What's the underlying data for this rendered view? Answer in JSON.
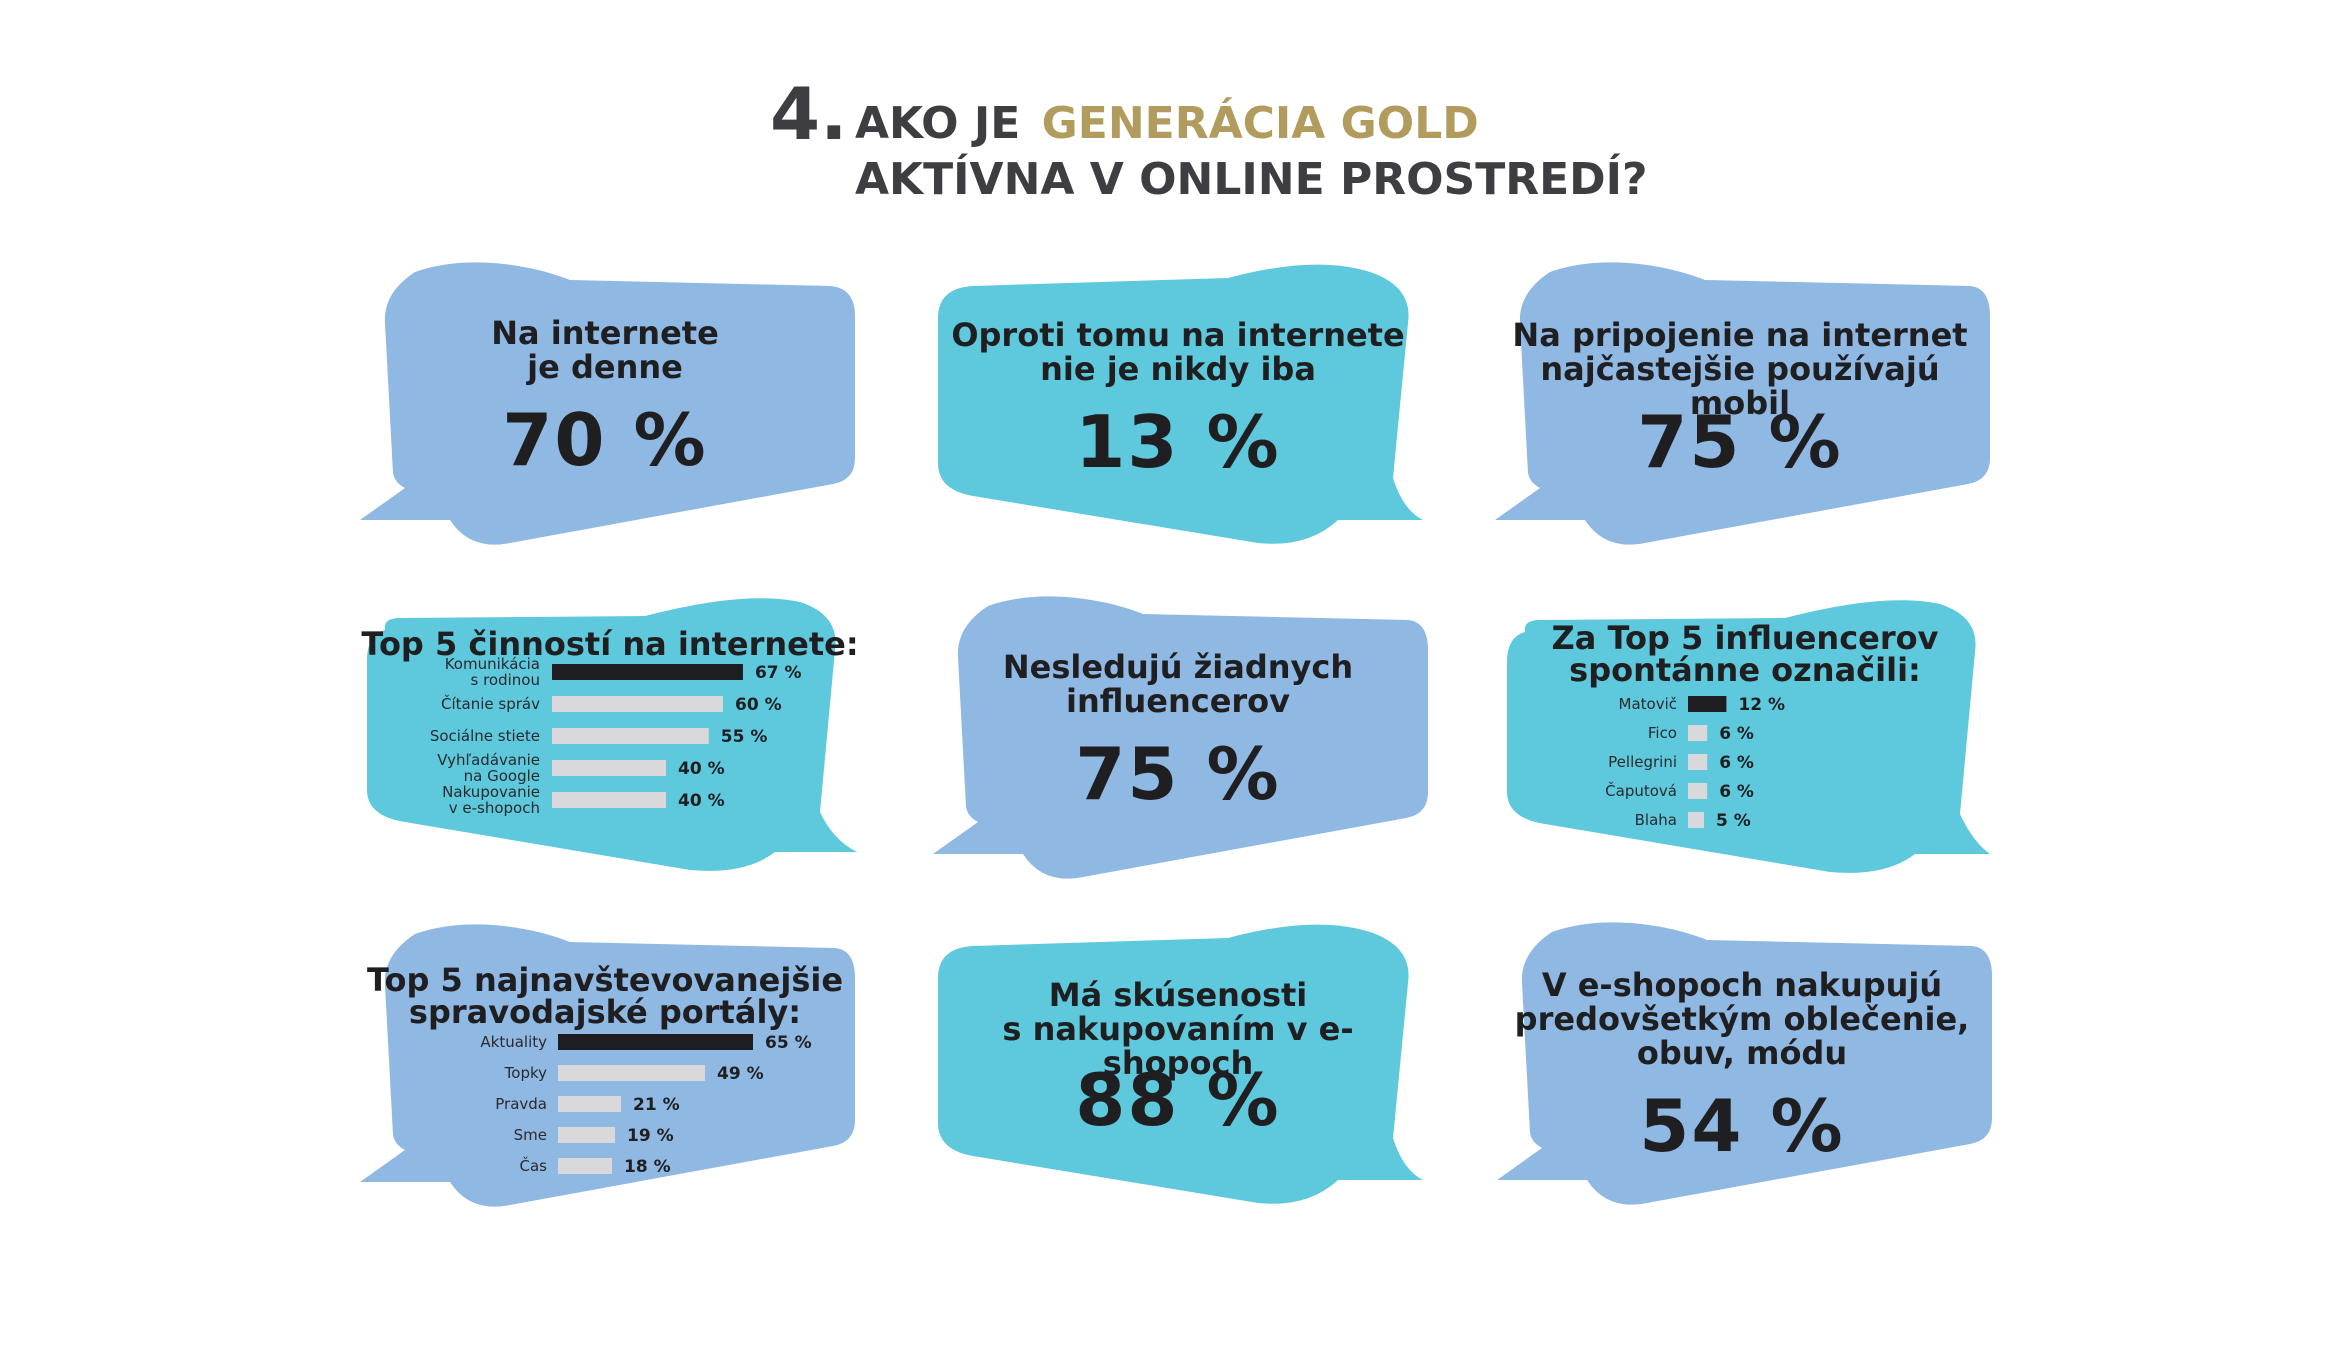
{
  "header": {
    "number": "4.",
    "line1_prefix": "AKO JE",
    "line1_highlight": "GENERÁCIA GOLD",
    "line2": "AKTÍVNA V ONLINE PROSTREDÍ?"
  },
  "colors": {
    "blue": "#8fb8e3",
    "cyan": "#5ec8dc",
    "gold": "#b19c5e",
    "bar_highlight": "#1e1e22",
    "bar_other": "#d9d9dc",
    "text": "#1f1f22"
  },
  "stats": {
    "daily": {
      "text_1": "Na internete",
      "text_2": "je denne",
      "value": "70 %"
    },
    "never": {
      "text_1": "Oproti tomu na internete",
      "text_2": "nie je nikdy iba",
      "value": "13 %"
    },
    "mobile": {
      "text_1": "Na pripojenie na internet",
      "text_2": "najčastejšie používajú mobil",
      "value": "75 %"
    },
    "influencers_none": {
      "text_1": "Nesledujú žiadnych",
      "text_2": "influencerov",
      "value": "75 %"
    },
    "eshop_exp": {
      "text_1": "Má skúsenosti",
      "text_2": "s nakupovaním v e-shopoch",
      "value": "88 %"
    },
    "eshop_items": {
      "text_1": "V e-shopoch nakupujú",
      "text_2": "predovšetkým oblečenie,",
      "text_3": "obuv, módu",
      "value": "54 %"
    }
  },
  "chart_data": [
    {
      "type": "bar",
      "title": "Top 5 činností na internete:",
      "categories": [
        "Komunikácia\ns rodinou",
        "Čítanie správ",
        "Sociálne stiete",
        "Vyhľadávanie\nna Google",
        "Nakupovanie\nv e-shopoch"
      ],
      "values": [
        67,
        60,
        55,
        40,
        40
      ],
      "value_labels": [
        "67 %",
        "60 %",
        "55 %",
        "40 %",
        "40 %"
      ]
    },
    {
      "type": "bar",
      "title": "Za Top 5 influencerov\nspontánne označili:",
      "categories": [
        "Matovič",
        "Fico",
        "Pellegrini",
        "Čaputová",
        "Blaha"
      ],
      "values": [
        12,
        6,
        6,
        6,
        5
      ],
      "value_labels": [
        "12 %",
        "6 %",
        "6 %",
        "6 %",
        "5 %"
      ]
    },
    {
      "type": "bar",
      "title": "Top 5 najnavštevovanejšie\nspravodajské portály:",
      "categories": [
        "Aktuality",
        "Topky",
        "Pravda",
        "Sme",
        "Čas"
      ],
      "values": [
        65,
        49,
        21,
        19,
        18
      ],
      "value_labels": [
        "65 %",
        "49 %",
        "21 %",
        "19 %",
        "18 %"
      ]
    }
  ]
}
